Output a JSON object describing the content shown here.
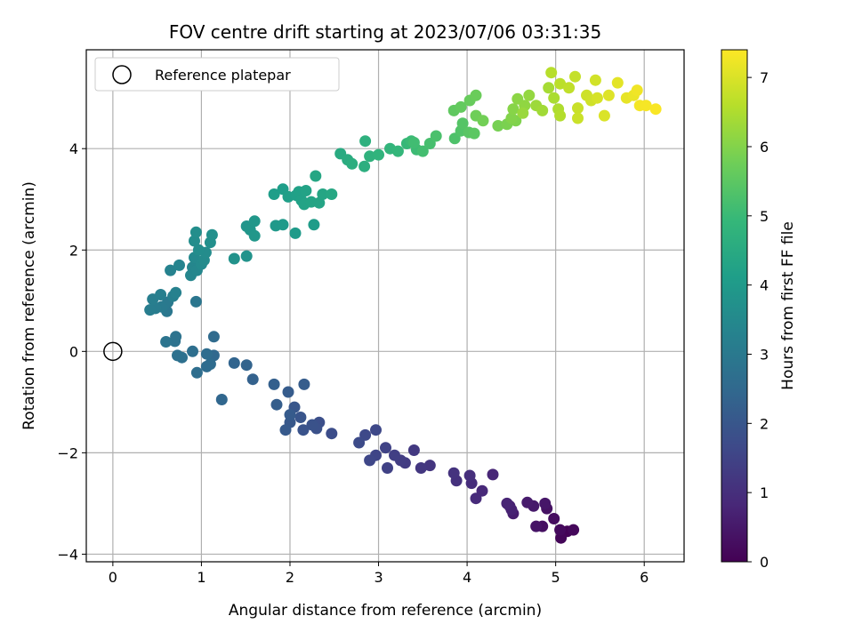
{
  "chart_data": {
    "type": "scatter",
    "title": "FOV centre drift starting at 2023/07/06 03:31:35",
    "xlabel": "Angular distance from reference (arcmin)",
    "ylabel": "Rotation from reference (arcmin)",
    "xlim": [
      -0.3,
      6.45
    ],
    "ylim": [
      -4.15,
      5.95
    ],
    "xticks": [
      0,
      1,
      2,
      3,
      4,
      5,
      6
    ],
    "xtick_labels": [
      "0",
      "1",
      "2",
      "3",
      "4",
      "5",
      "6"
    ],
    "yticks": [
      -4,
      -2,
      0,
      2,
      4
    ],
    "ytick_labels": [
      "−4",
      "−2",
      "0",
      "2",
      "4"
    ],
    "grid": true,
    "legend": {
      "placement": "top-left",
      "entries": [
        "Reference platepar"
      ]
    },
    "reference_point": {
      "x": 0,
      "y": 0,
      "label": "Reference platepar"
    },
    "colorbar": {
      "label": "Hours from first FF file",
      "colormap": "viridis",
      "range": [
        0,
        7.4
      ],
      "ticks": [
        0,
        1,
        2,
        3,
        4,
        5,
        6,
        7
      ],
      "tick_labels": [
        "0",
        "1",
        "2",
        "3",
        "4",
        "5",
        "6",
        "7"
      ],
      "stops": [
        "#440154",
        "#482878",
        "#3e4989",
        "#31688e",
        "#26828e",
        "#1f9e89",
        "#35b779",
        "#6ece58",
        "#b5de2b",
        "#fde725"
      ]
    },
    "points": [
      [
        5.13,
        -3.55,
        0.05
      ],
      [
        5.06,
        -3.68,
        0.1
      ],
      [
        5.2,
        -3.52,
        0.15
      ],
      [
        5.05,
        -3.52,
        0.2
      ],
      [
        4.98,
        -3.3,
        0.25
      ],
      [
        4.85,
        -3.45,
        0.3
      ],
      [
        4.9,
        -3.1,
        0.35
      ],
      [
        4.78,
        -3.45,
        0.4
      ],
      [
        4.88,
        -3.0,
        0.45
      ],
      [
        4.75,
        -3.05,
        0.5
      ],
      [
        4.68,
        -2.98,
        0.55
      ],
      [
        4.52,
        -3.2,
        0.6
      ],
      [
        4.48,
        -3.05,
        0.65
      ],
      [
        4.5,
        -3.12,
        0.7
      ],
      [
        4.45,
        -3.0,
        0.75
      ],
      [
        4.29,
        -2.43,
        0.8
      ],
      [
        4.17,
        -2.75,
        0.85
      ],
      [
        4.1,
        -2.9,
        0.9
      ],
      [
        4.05,
        -2.6,
        0.95
      ],
      [
        4.03,
        -2.45,
        1.0
      ],
      [
        3.88,
        -2.55,
        1.05
      ],
      [
        3.85,
        -2.4,
        1.1
      ],
      [
        3.58,
        -2.25,
        1.15
      ],
      [
        3.48,
        -2.3,
        1.2
      ],
      [
        3.4,
        -1.95,
        1.25
      ],
      [
        3.3,
        -2.2,
        1.3
      ],
      [
        3.25,
        -2.15,
        1.35
      ],
      [
        3.18,
        -2.05,
        1.4
      ],
      [
        3.1,
        -2.3,
        1.45
      ],
      [
        3.08,
        -1.9,
        1.5
      ],
      [
        2.97,
        -2.05,
        1.55
      ],
      [
        2.9,
        -2.15,
        1.6
      ],
      [
        2.97,
        -1.55,
        1.62
      ],
      [
        2.85,
        -1.65,
        1.65
      ],
      [
        2.78,
        -1.8,
        1.7
      ],
      [
        2.47,
        -1.62,
        1.75
      ],
      [
        2.33,
        -1.4,
        1.8
      ],
      [
        2.3,
        -1.52,
        1.85
      ],
      [
        2.25,
        -1.45,
        1.88
      ],
      [
        2.15,
        -1.55,
        1.9
      ],
      [
        2.12,
        -1.3,
        1.95
      ],
      [
        2.05,
        -1.1,
        2.0
      ],
      [
        2.0,
        -1.4,
        2.05
      ],
      [
        1.95,
        -1.55,
        2.1
      ],
      [
        2.0,
        -1.25,
        2.12
      ],
      [
        1.98,
        -0.8,
        2.15
      ],
      [
        2.16,
        -0.65,
        2.18
      ],
      [
        1.85,
        -1.05,
        2.2
      ],
      [
        1.82,
        -0.65,
        2.25
      ],
      [
        1.58,
        -0.55,
        2.3
      ],
      [
        1.51,
        -0.27,
        2.35
      ],
      [
        1.37,
        -0.23,
        2.4
      ],
      [
        1.23,
        -0.95,
        2.45
      ],
      [
        1.14,
        -0.08,
        2.5
      ],
      [
        1.14,
        0.29,
        2.55
      ],
      [
        1.1,
        -0.25,
        2.58
      ],
      [
        1.06,
        -0.3,
        2.6
      ],
      [
        1.06,
        -0.05,
        2.62
      ],
      [
        0.95,
        -0.42,
        2.65
      ],
      [
        0.9,
        0.0,
        2.7
      ],
      [
        0.78,
        -0.12,
        2.72
      ],
      [
        0.73,
        -0.08,
        2.75
      ],
      [
        0.7,
        0.2,
        2.78
      ],
      [
        0.71,
        0.29,
        2.8
      ],
      [
        0.6,
        0.19,
        2.85
      ],
      [
        0.94,
        0.98,
        2.9
      ],
      [
        0.61,
        0.79,
        2.95
      ],
      [
        0.62,
        0.97,
        3.0
      ],
      [
        0.55,
        0.88,
        3.05
      ],
      [
        0.48,
        0.85,
        3.1
      ],
      [
        0.42,
        0.82,
        3.12
      ],
      [
        0.45,
        1.03,
        3.15
      ],
      [
        0.54,
        1.12,
        3.18
      ],
      [
        0.68,
        1.09,
        3.2
      ],
      [
        0.71,
        1.16,
        3.25
      ],
      [
        0.65,
        1.6,
        3.3
      ],
      [
        0.75,
        1.7,
        3.35
      ],
      [
        0.88,
        1.5,
        3.4
      ],
      [
        0.9,
        1.66,
        3.42
      ],
      [
        0.95,
        1.6,
        3.45
      ],
      [
        0.92,
        1.85,
        3.5
      ],
      [
        1.0,
        1.72,
        3.52
      ],
      [
        1.03,
        1.8,
        3.55
      ],
      [
        1.05,
        1.95,
        3.58
      ],
      [
        0.97,
        2.0,
        3.6
      ],
      [
        0.92,
        2.18,
        3.62
      ],
      [
        0.94,
        2.35,
        3.65
      ],
      [
        1.1,
        2.15,
        3.68
      ],
      [
        1.12,
        2.3,
        3.7
      ],
      [
        1.37,
        1.83,
        3.75
      ],
      [
        1.51,
        1.88,
        3.8
      ],
      [
        1.51,
        2.47,
        3.85
      ],
      [
        1.55,
        2.4,
        3.88
      ],
      [
        1.6,
        2.28,
        3.9
      ],
      [
        1.6,
        2.57,
        3.92
      ],
      [
        1.84,
        2.48,
        3.95
      ],
      [
        1.92,
        2.5,
        4.0
      ],
      [
        2.06,
        2.33,
        4.02
      ],
      [
        2.27,
        2.5,
        4.05
      ],
      [
        1.82,
        3.1,
        4.1
      ],
      [
        1.92,
        3.2,
        4.12
      ],
      [
        1.98,
        3.05,
        4.15
      ],
      [
        2.07,
        3.08,
        4.18
      ],
      [
        2.1,
        3.15,
        4.2
      ],
      [
        2.13,
        2.98,
        4.22
      ],
      [
        2.18,
        3.17,
        4.25
      ],
      [
        2.16,
        2.9,
        4.28
      ],
      [
        2.24,
        2.95,
        4.3
      ],
      [
        2.33,
        2.93,
        4.32
      ],
      [
        2.37,
        3.1,
        4.35
      ],
      [
        2.29,
        3.46,
        4.38
      ],
      [
        2.47,
        3.1,
        4.4
      ],
      [
        2.57,
        3.9,
        4.5
      ],
      [
        2.65,
        3.78,
        4.55
      ],
      [
        2.7,
        3.7,
        4.6
      ],
      [
        2.84,
        3.65,
        4.65
      ],
      [
        2.85,
        4.15,
        4.7
      ],
      [
        2.9,
        3.85,
        4.75
      ],
      [
        3.0,
        3.88,
        4.8
      ],
      [
        3.13,
        4.0,
        4.85
      ],
      [
        3.22,
        3.95,
        4.9
      ],
      [
        3.32,
        4.1,
        4.95
      ],
      [
        3.37,
        4.15,
        5.0
      ],
      [
        3.43,
        3.98,
        5.05
      ],
      [
        3.4,
        4.12,
        5.1
      ],
      [
        3.5,
        3.95,
        5.15
      ],
      [
        3.58,
        4.1,
        5.2
      ],
      [
        3.65,
        4.25,
        5.25
      ],
      [
        3.86,
        4.2,
        5.3
      ],
      [
        3.93,
        4.35,
        5.35
      ],
      [
        3.95,
        4.5,
        5.4
      ],
      [
        4.02,
        4.32,
        5.45
      ],
      [
        4.08,
        4.3,
        5.5
      ],
      [
        3.85,
        4.75,
        5.55
      ],
      [
        3.93,
        4.82,
        5.6
      ],
      [
        4.03,
        4.95,
        5.65
      ],
      [
        4.1,
        5.05,
        5.7
      ],
      [
        4.1,
        4.65,
        5.75
      ],
      [
        4.18,
        4.55,
        5.8
      ],
      [
        4.35,
        4.45,
        5.85
      ],
      [
        4.45,
        4.48,
        5.9
      ],
      [
        4.55,
        4.55,
        5.95
      ],
      [
        4.5,
        4.6,
        6.0
      ],
      [
        4.52,
        4.78,
        6.05
      ],
      [
        4.57,
        4.98,
        6.1
      ],
      [
        4.65,
        4.85,
        6.15
      ],
      [
        4.7,
        5.05,
        6.2
      ],
      [
        4.63,
        4.7,
        6.25
      ],
      [
        4.78,
        4.85,
        6.3
      ],
      [
        4.85,
        4.75,
        6.35
      ],
      [
        4.92,
        5.2,
        6.4
      ],
      [
        4.98,
        5.0,
        6.45
      ],
      [
        5.03,
        4.78,
        6.5
      ],
      [
        5.05,
        4.65,
        6.55
      ],
      [
        4.95,
        5.5,
        6.6
      ],
      [
        5.05,
        5.28,
        6.65
      ],
      [
        5.15,
        5.2,
        6.7
      ],
      [
        5.22,
        5.42,
        6.75
      ],
      [
        5.25,
        4.8,
        6.8
      ],
      [
        5.25,
        4.6,
        6.82
      ],
      [
        5.35,
        5.05,
        6.85
      ],
      [
        5.4,
        4.95,
        6.88
      ],
      [
        5.45,
        5.35,
        6.9
      ],
      [
        5.47,
        5.0,
        6.95
      ],
      [
        5.55,
        4.65,
        7.0
      ],
      [
        5.6,
        5.05,
        7.05
      ],
      [
        5.7,
        5.3,
        7.1
      ],
      [
        5.8,
        5.0,
        7.15
      ],
      [
        5.88,
        5.05,
        7.2
      ],
      [
        5.92,
        5.15,
        7.25
      ],
      [
        5.95,
        4.85,
        7.3
      ],
      [
        6.02,
        4.85,
        7.32
      ],
      [
        6.13,
        4.78,
        7.35
      ]
    ]
  }
}
